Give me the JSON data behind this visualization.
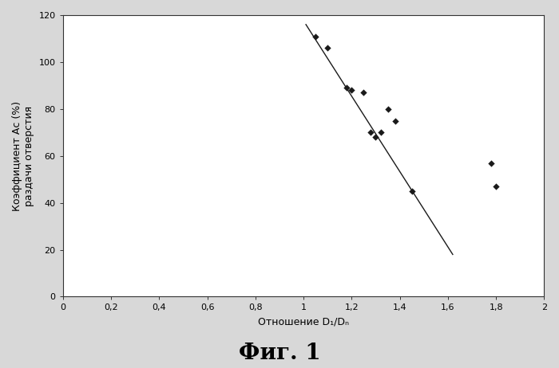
{
  "scatter_x": [
    1.05,
    1.1,
    1.18,
    1.2,
    1.25,
    1.28,
    1.3,
    1.32,
    1.35,
    1.38,
    1.45,
    1.78,
    1.8
  ],
  "scatter_y": [
    111,
    106,
    89,
    88,
    87,
    70,
    68,
    70,
    80,
    75,
    45,
    57,
    47
  ],
  "line_x": [
    1.01,
    1.62
  ],
  "line_y": [
    116,
    18
  ],
  "xlim": [
    0,
    2
  ],
  "ylim": [
    0,
    120
  ],
  "xticks": [
    0,
    0.2,
    0.4,
    0.6,
    0.8,
    1.0,
    1.2,
    1.4,
    1.6,
    1.8,
    2.0
  ],
  "yticks": [
    0,
    20,
    40,
    60,
    80,
    100,
    120
  ],
  "xtick_labels": [
    "0",
    "0,2",
    "0,4",
    "0,6",
    "0,8",
    "1",
    "1,2",
    "1,4",
    "1,6",
    "1,8",
    "2"
  ],
  "ytick_labels": [
    "0",
    "20",
    "40",
    "60",
    "80",
    "100",
    "120"
  ],
  "xlabel": "Отношение D₁/Dₙ",
  "ylabel_line1": "Коэффициент Аc (%)",
  "ylabel_line2": "раздачи отверстия",
  "figure_title": "Фиг. 1",
  "marker_color": "#1a1a1a",
  "line_color": "#1a1a1a",
  "plot_bg_color": "#ffffff",
  "outer_bg_color": "#d8d8d8",
  "tick_fontsize": 8,
  "label_fontsize": 9,
  "title_fontsize": 20
}
